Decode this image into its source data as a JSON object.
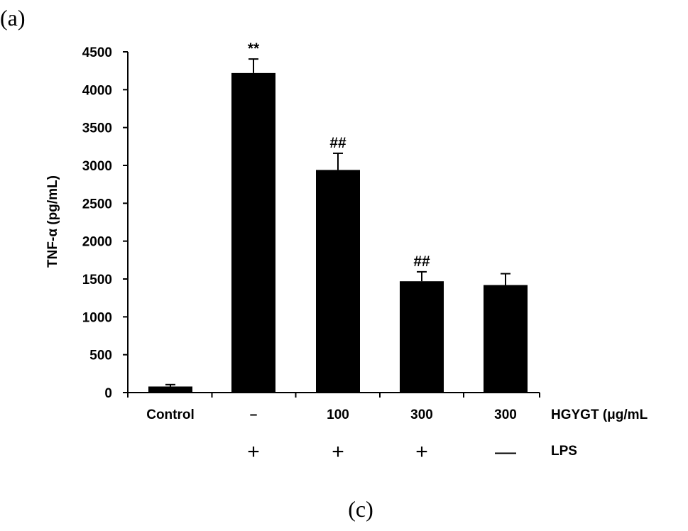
{
  "panel_top_label": "(a)",
  "panel_bottom_label": "(c)",
  "chart_data": {
    "type": "bar",
    "title": "",
    "ylabel": "TNF-α (pg/mL)",
    "xlabel": "",
    "ylim": [
      0,
      4500
    ],
    "yticks": [
      0,
      500,
      1000,
      1500,
      2000,
      2500,
      3000,
      3500,
      4000,
      4500
    ],
    "grid": false,
    "bar_color": "#000000",
    "categories": [
      "Control",
      "–",
      "100",
      "300",
      "300"
    ],
    "values": [
      80,
      4220,
      2940,
      1470,
      1420
    ],
    "errors": [
      25,
      185,
      220,
      125,
      150
    ],
    "significance": [
      "",
      "**",
      "##",
      "##",
      ""
    ],
    "row_labels": {
      "hgygt": "HGYGT (μg/mL",
      "lps": "LPS"
    },
    "lps_signs": [
      "",
      "+",
      "+",
      "+",
      "—"
    ]
  }
}
